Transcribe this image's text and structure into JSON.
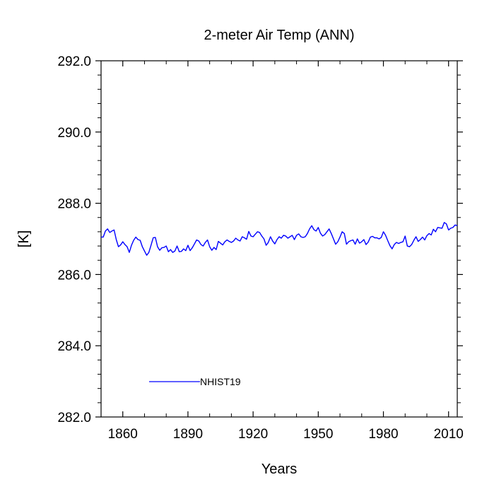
{
  "chart_data": {
    "type": "line",
    "title": "2-meter Air Temp (ANN)",
    "xlabel": "Years",
    "ylabel": "[K]",
    "xlim": [
      1850,
      2014
    ],
    "ylim": [
      282.0,
      292.0
    ],
    "xticks": [
      1860,
      1890,
      1920,
      1950,
      1980,
      2010
    ],
    "xtick_labels": [
      "1860",
      "1890",
      "1920",
      "1950",
      "1980",
      "2010"
    ],
    "yticks": [
      282.0,
      284.0,
      286.0,
      288.0,
      290.0,
      292.0
    ],
    "ytick_labels": [
      "282.0",
      "284.0",
      "286.0",
      "288.0",
      "290.0",
      "292.0"
    ],
    "grid": false,
    "legend_position": "bottom-left",
    "series": [
      {
        "name": "NHIST19",
        "color": "#0000ff",
        "x_start": 1850,
        "x_step": 1,
        "values": [
          287.05,
          287.05,
          287.22,
          287.28,
          287.18,
          287.22,
          287.25,
          286.98,
          286.78,
          286.83,
          286.92,
          286.84,
          286.78,
          286.62,
          286.82,
          286.96,
          287.05,
          286.98,
          286.96,
          286.78,
          286.66,
          286.54,
          286.62,
          286.82,
          287.03,
          287.04,
          286.78,
          286.68,
          286.75,
          286.76,
          286.8,
          286.64,
          286.7,
          286.62,
          286.66,
          286.8,
          286.64,
          286.65,
          286.72,
          286.67,
          286.82,
          286.67,
          286.75,
          286.86,
          286.97,
          286.94,
          286.84,
          286.8,
          286.9,
          286.97,
          286.78,
          286.68,
          286.76,
          286.7,
          286.93,
          286.88,
          286.83,
          286.92,
          286.97,
          286.93,
          286.9,
          286.94,
          287.02,
          286.97,
          286.94,
          287.06,
          287.03,
          286.99,
          287.21,
          287.08,
          287.06,
          287.13,
          287.2,
          287.18,
          287.08,
          287.0,
          286.82,
          286.9,
          287.06,
          286.94,
          286.86,
          286.98,
          287.06,
          287.02,
          287.1,
          287.08,
          287.02,
          287.06,
          287.1,
          286.98,
          287.1,
          287.14,
          287.06,
          287.04,
          287.06,
          287.15,
          287.28,
          287.37,
          287.26,
          287.22,
          287.32,
          287.16,
          287.08,
          287.12,
          287.2,
          287.28,
          287.15,
          287.0,
          286.85,
          286.92,
          287.05,
          287.2,
          287.15,
          286.85,
          286.92,
          286.95,
          286.97,
          286.85,
          287.0,
          286.88,
          286.92,
          286.98,
          286.84,
          286.91,
          287.05,
          287.07,
          287.03,
          287.03,
          287.0,
          287.04,
          287.2,
          287.1,
          286.95,
          286.81,
          286.72,
          286.84,
          286.9,
          286.87,
          286.9,
          286.92,
          287.08,
          286.8,
          286.78,
          286.84,
          286.96,
          287.06,
          286.93,
          286.98,
          287.05,
          286.97,
          287.09,
          287.15,
          287.11,
          287.27,
          287.2,
          287.32,
          287.31,
          287.3,
          287.46,
          287.42,
          287.25,
          287.3,
          287.32,
          287.39,
          287.37
        ]
      }
    ]
  }
}
